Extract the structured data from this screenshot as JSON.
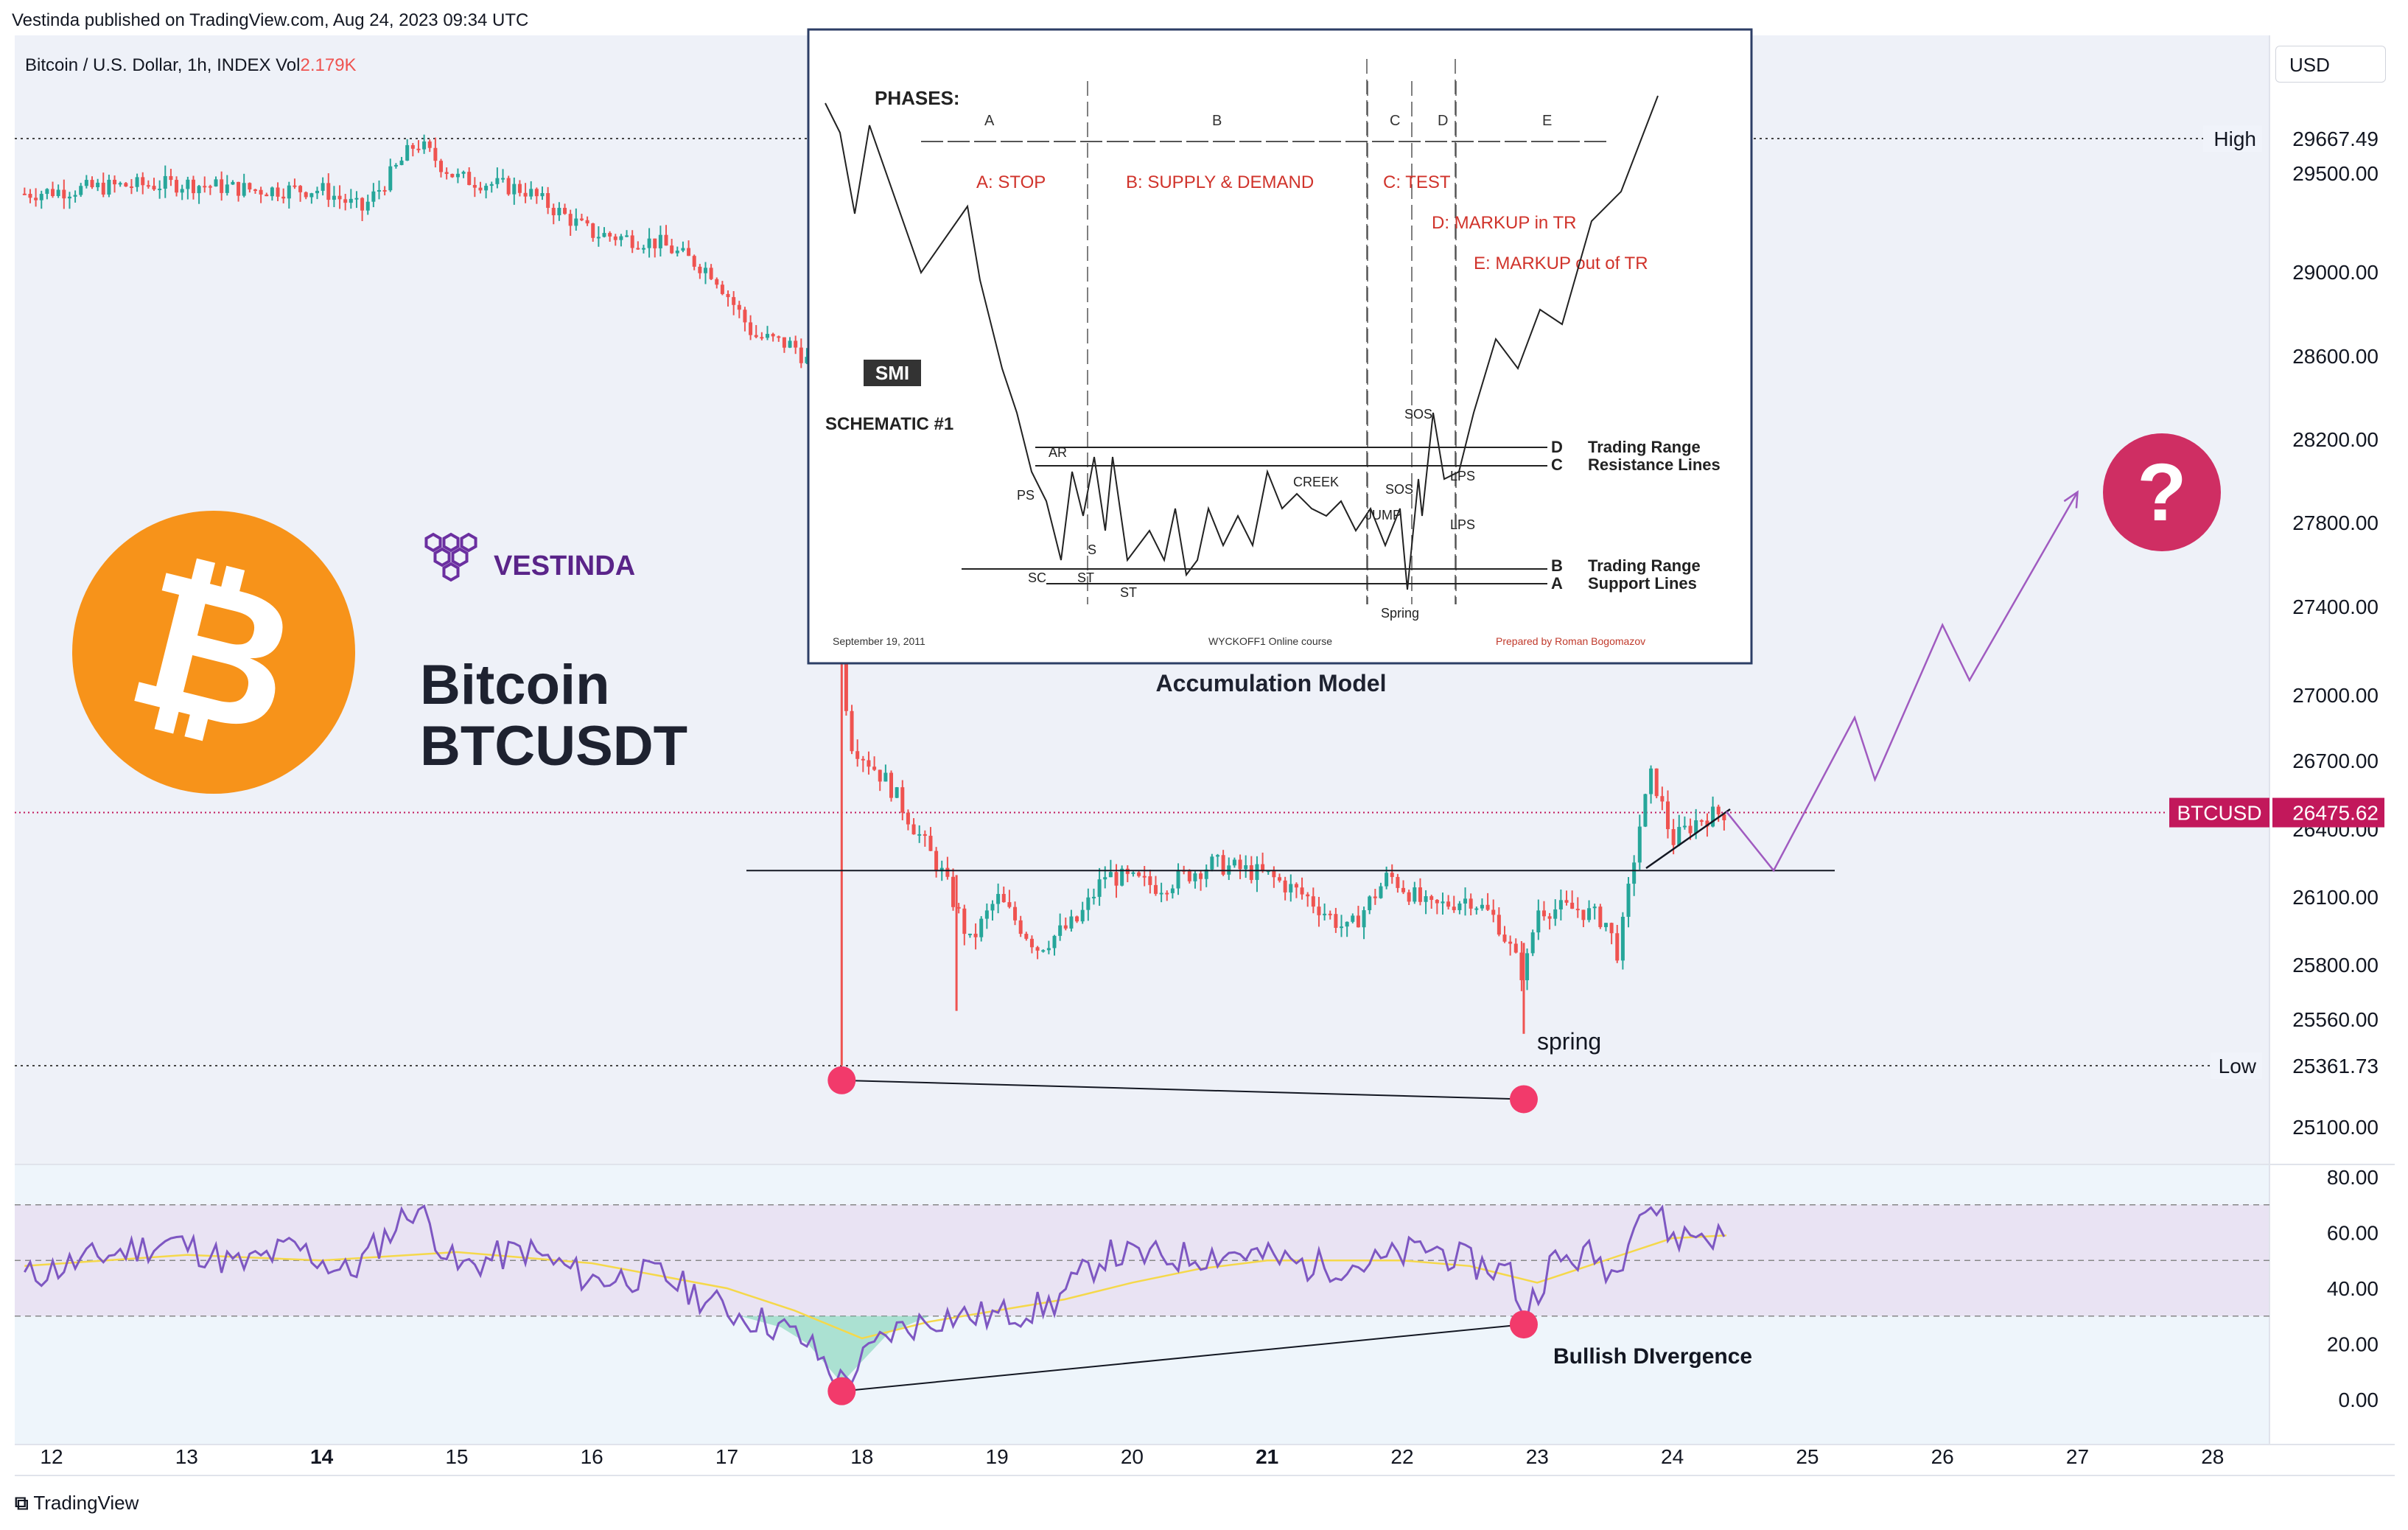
{
  "header": {
    "publish_line": "Vestinda published on TradingView.com, Aug 24, 2023 09:34 UTC",
    "symbol_line": "Bitcoin / U.S. Dollar, 1h, INDEX",
    "vol_label": "Vol",
    "vol_value": "2.179K"
  },
  "currency_button": "USD",
  "footer": {
    "brand": "TradingView"
  },
  "branding": {
    "logo_text": "VESTINDA",
    "coin_title": "Bitcoin",
    "coin_pair": "BTCUSDT"
  },
  "price_axis": {
    "labels": [
      "29500.00",
      "29000.00",
      "28600.00",
      "28200.00",
      "27800.00",
      "27400.00",
      "27000.00",
      "26700.00",
      "26400.00",
      "26100.00",
      "25800.00",
      "25560.00",
      "25100.00"
    ],
    "high_label": "High",
    "high_value": "29667.49",
    "low_label": "Low",
    "low_value": "25361.73",
    "last_symbol": "BTCUSD",
    "last_value": "26475.62"
  },
  "rsi_axis": {
    "labels": [
      "80.00",
      "60.00",
      "40.00",
      "20.00",
      "0.00"
    ]
  },
  "time_axis": {
    "labels": [
      "12",
      "13",
      "14",
      "15",
      "16",
      "17",
      "18",
      "19",
      "20",
      "21",
      "22",
      "23",
      "24",
      "25",
      "26",
      "27",
      "28"
    ],
    "bold_labels": [
      "14",
      "21"
    ]
  },
  "annotations": {
    "spring": "spring",
    "bullish": "Bullish DIvergence",
    "accumulation": "Accumulation Model",
    "question": "?"
  },
  "schematic": {
    "phases_title": "PHASES:",
    "phase_letters": [
      "A",
      "B",
      "C",
      "D",
      "E"
    ],
    "phase_names": [
      "A: STOP",
      "B: SUPPLY & DEMAND",
      "C: TEST",
      "D: MARKUP in TR",
      "E: MARKUP out of TR"
    ],
    "badge": "SMI",
    "title": "SCHEMATIC #1",
    "resistance_letters": [
      "D",
      "C"
    ],
    "resistance_text": [
      "Trading Range",
      "Resistance Lines"
    ],
    "support_letters": [
      "B",
      "A"
    ],
    "support_text": [
      "Trading Range",
      "Support Lines"
    ],
    "point_labels": [
      "PS",
      "SC",
      "AR",
      "ST",
      "ST",
      "S",
      "CREEK",
      "JUMP",
      "SOS",
      "SOS",
      "LPS",
      "LPS",
      "Spring"
    ],
    "footer_date": "September 19, 2011",
    "footer_course": "WYCKOFF1 Online course",
    "footer_author": "Prepared by Roman Bogomazov"
  },
  "colors": {
    "up": "#26a69a",
    "down": "#ef5350",
    "rsi": "#7e57c2",
    "rsi_ma": "#f5d84a",
    "marker": "#f23a6b",
    "projection": "#a05bc0",
    "bitcoin": "#f7931a",
    "question_bg": "#cf2e63",
    "last_price": "#c2185b",
    "price_tint": "#eef1f8",
    "rsi_band": "#e9e3f3"
  },
  "chart_data": [
    {
      "type": "candlestick",
      "title": "Bitcoin / U.S. Dollar, 1h, INDEX",
      "x_range": [
        "12",
        "28"
      ],
      "ylim": [
        25000,
        29900
      ],
      "y_ticks": [
        29500,
        29000,
        28600,
        28200,
        27800,
        27400,
        27000,
        26700,
        26400,
        26100,
        25800,
        25560,
        25100
      ],
      "high": 29667.49,
      "low": 25361.73,
      "last": 26475.62,
      "path_day_price": [
        [
          11.8,
          29400
        ],
        [
          12.5,
          29440
        ],
        [
          13.0,
          29450
        ],
        [
          13.5,
          29420
        ],
        [
          14.0,
          29420
        ],
        [
          14.3,
          29320
        ],
        [
          14.7,
          29650
        ],
        [
          15.0,
          29480
        ],
        [
          15.5,
          29420
        ],
        [
          16.0,
          29200
        ],
        [
          16.5,
          29150
        ],
        [
          16.9,
          29000
        ],
        [
          17.2,
          28700
        ],
        [
          17.5,
          28650
        ],
        [
          17.7,
          28500
        ],
        [
          17.85,
          27300
        ],
        [
          17.9,
          26800
        ],
        [
          18.2,
          26600
        ],
        [
          18.4,
          26400
        ],
        [
          18.6,
          26200
        ],
        [
          18.8,
          25900
        ],
        [
          19.0,
          26100
        ],
        [
          19.3,
          25880
        ],
        [
          19.6,
          26000
        ],
        [
          19.8,
          26200
        ],
        [
          20.2,
          26150
        ],
        [
          20.6,
          26250
        ],
        [
          21.0,
          26200
        ],
        [
          21.3,
          26100
        ],
        [
          21.6,
          25950
        ],
        [
          21.9,
          26200
        ],
        [
          22.2,
          26050
        ],
        [
          22.5,
          26100
        ],
        [
          22.7,
          26000
        ],
        [
          22.9,
          25750
        ],
        [
          23.0,
          26050
        ],
        [
          23.3,
          26050
        ],
        [
          23.5,
          26000
        ],
        [
          23.6,
          25850
        ],
        [
          23.75,
          26400
        ],
        [
          23.85,
          26650
        ],
        [
          24.0,
          26350
        ],
        [
          24.2,
          26450
        ],
        [
          24.4,
          26480
        ]
      ],
      "spikes": [
        {
          "day": 17.85,
          "low": 25361.73
        },
        {
          "day": 22.9,
          "low": 25500
        },
        {
          "day": 18.7,
          "low": 25600
        }
      ],
      "horizontal_level": 26220,
      "projection": [
        [
          24.4,
          26480
        ],
        [
          24.75,
          26220
        ],
        [
          25.35,
          26900
        ],
        [
          25.5,
          26620
        ],
        [
          26.0,
          27320
        ],
        [
          26.2,
          27070
        ],
        [
          27.0,
          27950
        ]
      ],
      "divergence_price": [
        [
          17.85,
          25300
        ],
        [
          22.9,
          25220
        ]
      ]
    },
    {
      "type": "line",
      "title": "RSI",
      "ylim": [
        -10,
        92
      ],
      "y_ticks": [
        80,
        60,
        40,
        20,
        0
      ],
      "bands": [
        30,
        50,
        70
      ],
      "series": [
        {
          "values": [
            [
              11.8,
              44
            ],
            [
              12.4,
              52
            ],
            [
              12.9,
              57
            ],
            [
              13.4,
              48
            ],
            [
              13.8,
              55
            ],
            [
              14.2,
              45
            ],
            [
              14.7,
              70
            ],
            [
              15.0,
              47
            ],
            [
              15.5,
              54
            ],
            [
              16.0,
              43
            ],
            [
              16.5,
              45
            ],
            [
              17.0,
              32
            ],
            [
              17.4,
              26
            ],
            [
              17.6,
              20
            ],
            [
              17.85,
              6
            ],
            [
              18.2,
              24
            ],
            [
              18.6,
              30
            ],
            [
              19.0,
              30
            ],
            [
              19.4,
              34
            ],
            [
              19.8,
              52
            ],
            [
              20.3,
              51
            ],
            [
              20.8,
              53
            ],
            [
              21.3,
              48
            ],
            [
              21.8,
              49
            ],
            [
              22.2,
              55
            ],
            [
              22.5,
              49
            ],
            [
              22.8,
              46
            ],
            [
              22.9,
              30
            ],
            [
              23.1,
              49
            ],
            [
              23.4,
              52
            ],
            [
              23.6,
              45
            ],
            [
              23.7,
              67
            ],
            [
              23.85,
              70
            ],
            [
              24.0,
              58
            ],
            [
              24.2,
              60
            ],
            [
              24.4,
              58
            ]
          ]
        },
        {
          "values": [
            [
              11.8,
              48
            ],
            [
              13.0,
              52
            ],
            [
              14.0,
              50
            ],
            [
              15.0,
              53
            ],
            [
              16.0,
              49
            ],
            [
              17.0,
              40
            ],
            [
              17.5,
              32
            ],
            [
              18.0,
              22
            ],
            [
              18.5,
              28
            ],
            [
              19.0,
              32
            ],
            [
              19.5,
              36
            ],
            [
              20.0,
              42
            ],
            [
              20.5,
              47
            ],
            [
              21.0,
              50
            ],
            [
              22.0,
              50
            ],
            [
              22.5,
              48
            ],
            [
              23.0,
              42
            ],
            [
              23.5,
              50
            ],
            [
              24.0,
              58
            ],
            [
              24.4,
              59
            ]
          ]
        }
      ],
      "divergence": [
        [
          17.85,
          3
        ],
        [
          22.9,
          27
        ]
      ]
    }
  ]
}
